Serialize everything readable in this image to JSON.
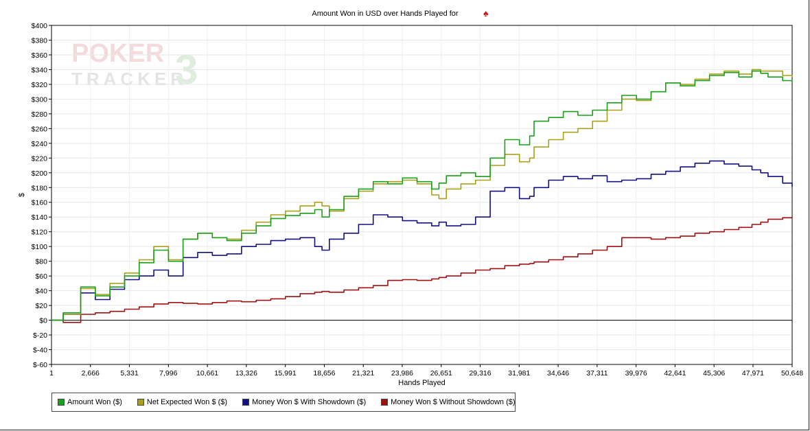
{
  "chart_data": {
    "type": "line",
    "title": "Amount Won in USD over Hands Played for",
    "title_icon": "spade-icon",
    "watermark": "POKER TRACKER 3",
    "xlabel": "Hands Played",
    "ylabel": "$",
    "xlim": [
      1,
      50648
    ],
    "ylim": [
      -60,
      400
    ],
    "grid": true,
    "legend_position": "bottom-left",
    "x_ticks": [
      "1",
      "2,666",
      "5,331",
      "7,996",
      "10,661",
      "13,326",
      "15,991",
      "18,656",
      "21,321",
      "23,986",
      "26,651",
      "29,316",
      "31,981",
      "34,646",
      "37,311",
      "39,976",
      "42,641",
      "45,306",
      "47,971",
      "50,648"
    ],
    "x_tick_values": [
      1,
      2666,
      5331,
      7996,
      10661,
      13326,
      15991,
      18656,
      21321,
      23986,
      26651,
      29316,
      31981,
      34646,
      37311,
      39976,
      42641,
      45306,
      47971,
      50648
    ],
    "y_ticks": [
      "$-60",
      "$-40",
      "$-20",
      "$0",
      "$20",
      "$40",
      "$60",
      "$80",
      "$100",
      "$120",
      "$140",
      "$160",
      "$180",
      "$200",
      "$220",
      "$240",
      "$260",
      "$280",
      "$300",
      "$320",
      "$340",
      "$360",
      "$380",
      "$400"
    ],
    "y_tick_values": [
      -60,
      -40,
      -20,
      0,
      20,
      40,
      60,
      80,
      100,
      120,
      140,
      160,
      180,
      200,
      220,
      240,
      260,
      280,
      300,
      320,
      340,
      360,
      380,
      400
    ],
    "x": [
      1,
      800,
      2000,
      3000,
      4000,
      5000,
      6000,
      7000,
      8000,
      9000,
      10000,
      11000,
      12000,
      13000,
      14000,
      15000,
      16000,
      17000,
      18000,
      18500,
      19000,
      20000,
      21000,
      22000,
      23000,
      24000,
      25000,
      26000,
      26500,
      27000,
      28000,
      29000,
      30000,
      31000,
      32000,
      32700,
      33000,
      34000,
      35000,
      36000,
      37000,
      38000,
      39000,
      40000,
      41000,
      42000,
      43000,
      44000,
      45000,
      46000,
      47000,
      47900,
      48500,
      49000,
      50000,
      50648
    ],
    "series": [
      {
        "name": "Amount Won ($)",
        "color": "#1aa01a",
        "values": [
          0,
          10,
          45,
          33,
          45,
          60,
          78,
          95,
          80,
          110,
          118,
          112,
          108,
          118,
          128,
          138,
          142,
          145,
          150,
          140,
          150,
          168,
          178,
          188,
          185,
          193,
          188,
          178,
          186,
          196,
          200,
          195,
          220,
          245,
          238,
          250,
          270,
          275,
          283,
          278,
          285,
          295,
          305,
          300,
          310,
          322,
          318,
          325,
          332,
          336,
          330,
          338,
          335,
          330,
          325,
          322
        ]
      },
      {
        "name": "Net Expected Won $ ($)",
        "color": "#a8a018",
        "values": [
          0,
          8,
          43,
          35,
          50,
          64,
          82,
          100,
          82,
          110,
          118,
          112,
          110,
          122,
          133,
          143,
          148,
          155,
          160,
          155,
          148,
          165,
          175,
          185,
          188,
          190,
          185,
          170,
          165,
          178,
          185,
          190,
          210,
          225,
          215,
          220,
          235,
          245,
          255,
          260,
          270,
          285,
          300,
          298,
          310,
          322,
          320,
          327,
          334,
          338,
          334,
          340,
          338,
          338,
          332,
          330
        ]
      },
      {
        "name": "Money Won $ With Showdown ($)",
        "color": "#101080",
        "values": [
          0,
          8,
          37,
          28,
          42,
          55,
          60,
          68,
          60,
          85,
          92,
          88,
          90,
          100,
          103,
          108,
          110,
          112,
          100,
          95,
          110,
          118,
          130,
          143,
          140,
          135,
          132,
          128,
          133,
          128,
          130,
          140,
          175,
          180,
          165,
          168,
          180,
          190,
          195,
          192,
          196,
          188,
          190,
          192,
          198,
          202,
          208,
          213,
          216,
          212,
          209,
          204,
          200,
          195,
          186,
          181
        ]
      },
      {
        "name": "Money Won $ Without Showdown ($)",
        "color": "#a01010",
        "values": [
          0,
          -3,
          8,
          10,
          12,
          15,
          18,
          22,
          24,
          23,
          22,
          24,
          26,
          25,
          27,
          29,
          32,
          36,
          38,
          39,
          38,
          41,
          44,
          47,
          54,
          55,
          54,
          56,
          58,
          60,
          64,
          68,
          70,
          74,
          76,
          77,
          79,
          82,
          86,
          90,
          95,
          100,
          112,
          112,
          110,
          112,
          114,
          118,
          120,
          123,
          126,
          130,
          133,
          137,
          139,
          140
        ]
      }
    ]
  },
  "legend": {
    "items": [
      {
        "label": "Amount Won ($)",
        "color": "#1aa01a"
      },
      {
        "label": "Net Expected Won $ ($)",
        "color": "#a8a018"
      },
      {
        "label": "Money Won $ With Showdown ($)",
        "color": "#101080"
      },
      {
        "label": "Money Won $ Without Showdown ($)",
        "color": "#a01010"
      }
    ]
  }
}
